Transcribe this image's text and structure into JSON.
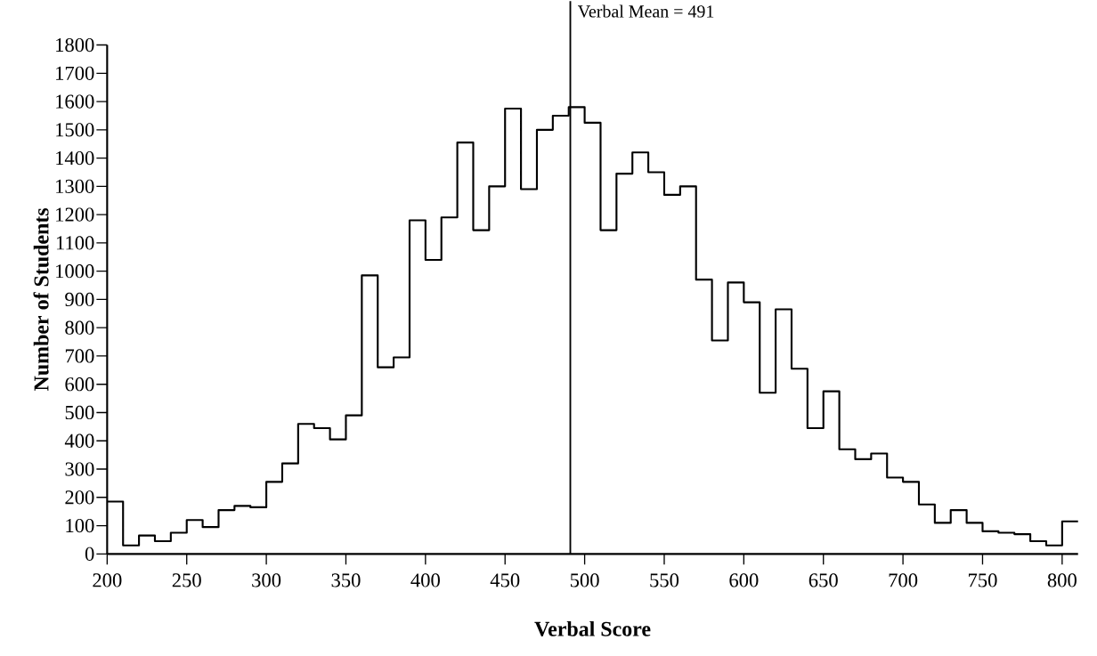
{
  "chart_data": {
    "type": "histogram",
    "xlabel": "Verbal Score",
    "ylabel": "Number of Students",
    "color": "#000000",
    "bins": [
      200,
      210,
      220,
      230,
      240,
      250,
      260,
      270,
      280,
      290,
      300,
      310,
      320,
      330,
      340,
      350,
      360,
      370,
      380,
      390,
      400,
      410,
      420,
      430,
      440,
      450,
      460,
      470,
      480,
      490,
      500,
      510,
      520,
      530,
      540,
      550,
      560,
      570,
      580,
      590,
      600,
      610,
      620,
      630,
      640,
      650,
      660,
      670,
      680,
      690,
      700,
      710,
      720,
      730,
      740,
      750,
      760,
      770,
      780,
      790,
      800,
      810
    ],
    "values": [
      185,
      30,
      65,
      45,
      75,
      120,
      95,
      155,
      170,
      165,
      255,
      320,
      460,
      445,
      405,
      490,
      985,
      660,
      695,
      1180,
      1040,
      1190,
      1455,
      1145,
      1300,
      1575,
      1290,
      1500,
      1550,
      1580,
      1525,
      1145,
      1345,
      1420,
      1350,
      1270,
      1300,
      970,
      755,
      960,
      890,
      570,
      865,
      655,
      445,
      575,
      370,
      335,
      355,
      270,
      255,
      175,
      110,
      155,
      110,
      80,
      75,
      70,
      45,
      30,
      115
    ],
    "xlim": [
      200,
      810
    ],
    "ylim": [
      0,
      1800
    ],
    "xticks": [
      200,
      250,
      300,
      350,
      400,
      450,
      500,
      550,
      600,
      650,
      700,
      750,
      800
    ],
    "yticks": [
      0,
      100,
      200,
      300,
      400,
      500,
      600,
      700,
      800,
      900,
      1000,
      1100,
      1200,
      1300,
      1400,
      1500,
      1600,
      1700,
      1800
    ],
    "ref_lines": [
      {
        "axis": "x",
        "value": 491,
        "label": "Verbal Mean = 491",
        "color": "#000000"
      }
    ]
  }
}
